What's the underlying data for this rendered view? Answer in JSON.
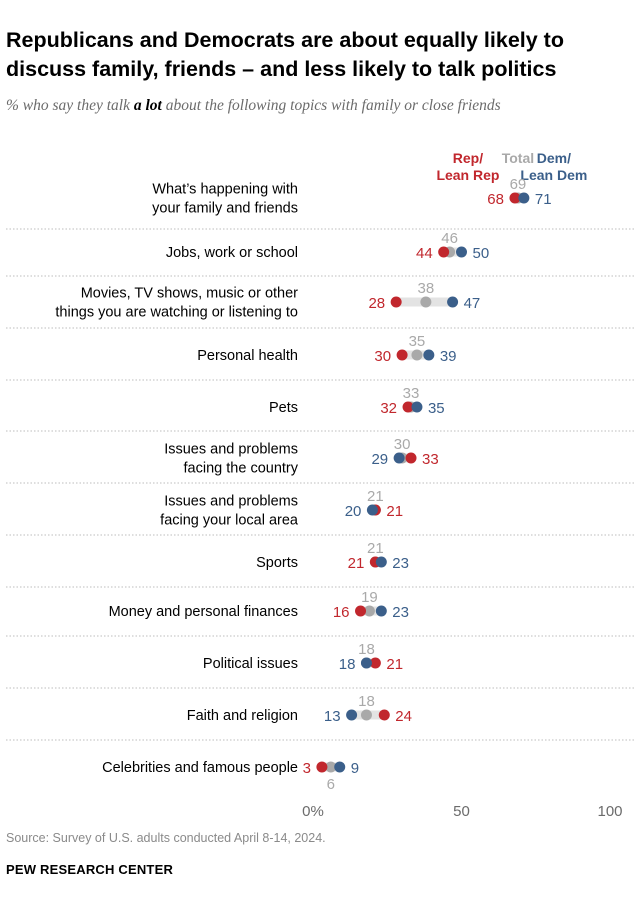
{
  "header": {
    "title": "Republicans and Democrats are about equally likely to discuss family, friends – and less likely to talk politics",
    "subtitle_before": "% who say they talk ",
    "subtitle_emphasis": "a lot",
    "subtitle_after": " about the following topics with family or close friends"
  },
  "footer": {
    "source": "Source: Survey of U.S. adults conducted April 8-14, 2024.",
    "brand": "PEW RESEARCH CENTER"
  },
  "colors": {
    "rep": "#c1272d",
    "total": "#a9a9a9",
    "dem": "#3b5f8a",
    "connector": "#e3e3e3",
    "separator": "#bcbcbc",
    "label": "#000000",
    "axis": "#6b6b6b"
  },
  "chart_data": {
    "type": "dot",
    "xlim": [
      0,
      100
    ],
    "x_ticks": [
      {
        "value": 0,
        "label": "0%"
      },
      {
        "value": 50,
        "label": "50"
      },
      {
        "value": 100,
        "label": "100"
      }
    ],
    "legend": {
      "rep": [
        "Rep/",
        "Lean Rep"
      ],
      "total": [
        "Total"
      ],
      "dem": [
        "Dem/",
        "Lean Dem"
      ]
    },
    "series_names": [
      "Rep/Lean Rep",
      "Total",
      "Dem/Lean Dem"
    ],
    "categories": [
      {
        "label": [
          "What’s happening with",
          "your family and friends"
        ],
        "rep": 68,
        "total": 69,
        "dem": 71
      },
      {
        "label": [
          "Jobs, work or school"
        ],
        "rep": 44,
        "total": 46,
        "dem": 50
      },
      {
        "label": [
          "Movies, TV shows, music or other",
          "things you are watching or listening to"
        ],
        "rep": 28,
        "total": 38,
        "dem": 47
      },
      {
        "label": [
          "Personal health"
        ],
        "rep": 30,
        "total": 35,
        "dem": 39
      },
      {
        "label": [
          "Pets"
        ],
        "rep": 32,
        "total": 33,
        "dem": 35
      },
      {
        "label": [
          "Issues and problems",
          "facing the country"
        ],
        "rep": 33,
        "total": 30,
        "dem": 29
      },
      {
        "label": [
          "Issues and problems",
          "facing your local area"
        ],
        "rep": 21,
        "total": 21,
        "dem": 20
      },
      {
        "label": [
          "Sports"
        ],
        "rep": 21,
        "total": 21,
        "dem": 23
      },
      {
        "label": [
          "Money and personal finances"
        ],
        "rep": 16,
        "total": 19,
        "dem": 23
      },
      {
        "label": [
          "Political issues"
        ],
        "rep": 21,
        "total": 18,
        "dem": 18
      },
      {
        "label": [
          "Faith and religion"
        ],
        "rep": 24,
        "total": 18,
        "dem": 13
      },
      {
        "label": [
          "Celebrities and famous people"
        ],
        "rep": 3,
        "total": 6,
        "dem": 9
      }
    ]
  }
}
